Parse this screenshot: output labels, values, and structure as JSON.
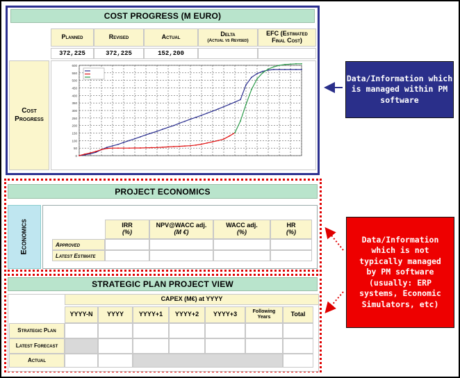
{
  "cost_progress": {
    "title": "Cost Progress (M euro)",
    "headers": [
      "Planned",
      "Revised",
      "Actual",
      "Delta",
      "EFC (Estimated"
    ],
    "header_subs": {
      "delta": "(Actual vs Revised)",
      "efc": "Final Cost)"
    },
    "values": [
      "372,225",
      "372,225",
      "152,200",
      "",
      ""
    ],
    "side_label_1": "Cost",
    "side_label_2": "Progress"
  },
  "project_economics": {
    "title": "Project Economics",
    "vertical_label": "Economics",
    "columns": [
      "IRR",
      "NPV@WACC adj.",
      "WACC adj.",
      "HR"
    ],
    "column_units": [
      "(%)",
      "(M €)",
      "(%)",
      "(%)"
    ],
    "rows": [
      "Approved",
      "Latest Estimate"
    ]
  },
  "strategic_plan": {
    "title": "Strategic Plan Project View",
    "capex_label": "CAPEX (M€) at YYYY",
    "columns": [
      "YYYY-N",
      "YYYY",
      "YYYY+1",
      "YYYY+2",
      "YYYY+3",
      "Following Years",
      "Total"
    ],
    "rows": [
      "Strategic Plan",
      "Latest Forecast",
      "Actual"
    ]
  },
  "info_boxes": {
    "managed": "Data/Information which is managed within PM software",
    "not_managed": "Data/Information which is not typically managed by PM software (usually: ERP systems, Economic Simulators, etc)"
  },
  "chart_data": {
    "type": "line",
    "ylim": [
      0,
      600
    ],
    "yticks": [
      0,
      50,
      100,
      150,
      200,
      250,
      300,
      350,
      400,
      450,
      500,
      550,
      600
    ],
    "x_count": 41,
    "legend_placement": "top-left",
    "series": [
      {
        "color": "#2b2f8f",
        "values": [
          0,
          5,
          12,
          22,
          40,
          55,
          65,
          75,
          88,
          100,
          112,
          125,
          138,
          150,
          162,
          175,
          188,
          200,
          215,
          228,
          242,
          255,
          268,
          282,
          296,
          310,
          325,
          340,
          356,
          372,
          470,
          520,
          545,
          560,
          568,
          572,
          572,
          572,
          572,
          572,
          572
        ]
      },
      {
        "color": "#e01010",
        "values": [
          0,
          10,
          18,
          28,
          40,
          48,
          50,
          50,
          50,
          50,
          51,
          51,
          52,
          53,
          54,
          56,
          58,
          60,
          62,
          64,
          66,
          70,
          76,
          84,
          92,
          100,
          110,
          130,
          152,
          null,
          null,
          null,
          null,
          null,
          null,
          null,
          null,
          null,
          null,
          null,
          null
        ]
      },
      {
        "color": "#2c9b4a",
        "values": [
          null,
          null,
          null,
          null,
          null,
          null,
          null,
          null,
          null,
          null,
          null,
          null,
          null,
          null,
          null,
          null,
          null,
          null,
          null,
          null,
          null,
          null,
          null,
          null,
          null,
          null,
          null,
          null,
          152,
          230,
          340,
          440,
          510,
          550,
          575,
          590,
          600,
          605,
          608,
          610,
          610
        ]
      }
    ]
  }
}
